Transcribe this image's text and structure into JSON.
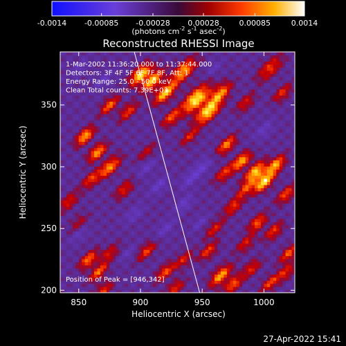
{
  "chart_data": {
    "type": "heatmap",
    "title": "Reconstructed RHESSI Image",
    "xlabel": "Heliocentric X (arcsec)",
    "ylabel": "Heliocentric Y (arcsec)",
    "xlim": [
      835,
      1025
    ],
    "ylim": [
      198,
      393
    ],
    "x_ticks": [
      850,
      900,
      950,
      1000
    ],
    "y_ticks": [
      200,
      250,
      300,
      350
    ],
    "colorbar": {
      "label_main": "(photons cm",
      "label_sup1": "-2",
      "label_mid": " s",
      "label_sup2": "-1",
      "label_mid2": " asec",
      "label_sup3": "-2",
      "label_end": ")",
      "range": [
        -0.0014,
        0.0014
      ],
      "tick_labels": [
        "-0.0014",
        "-0.00085",
        "-0.00028",
        "0.00028",
        "0.00085",
        "0.0014"
      ],
      "tick_values": [
        -0.0014,
        -0.00085,
        -0.00028,
        0.00028,
        0.00085,
        0.0014
      ]
    },
    "annotations": [
      "1-Mar-2002 11:36:20.000 to 11:37:44.000",
      "Detectors: 3F 4F 5F 6F 7F 8F, Att: 1",
      "Energy Range: 25.0 - 50.0 keV",
      "Clean     Total counts: 7.39E+03"
    ],
    "peak_label": "Position of Peak = [946,342]",
    "limb_line": [
      [
        895,
        393
      ],
      [
        948,
        198
      ]
    ],
    "blobs": [
      [
        900,
        375,
        3.5,
        0.95
      ],
      [
        910,
        370,
        3.5,
        0.9
      ],
      [
        920,
        360,
        3.5,
        0.9
      ],
      [
        935,
        378,
        4,
        0.8
      ],
      [
        945,
        355,
        4.5,
        1.0
      ],
      [
        955,
        345,
        4,
        0.95
      ],
      [
        965,
        360,
        3.5,
        0.7
      ],
      [
        875,
        350,
        3,
        0.65
      ],
      [
        890,
        345,
        3,
        0.55
      ],
      [
        925,
        340,
        3,
        0.6
      ],
      [
        940,
        325,
        3,
        0.45
      ],
      [
        985,
        352,
        3,
        0.45
      ],
      [
        1005,
        380,
        4,
        0.55
      ],
      [
        1015,
        360,
        3,
        0.5
      ],
      [
        855,
        325,
        3,
        0.85
      ],
      [
        865,
        312,
        3,
        0.8
      ],
      [
        875,
        300,
        3.5,
        0.75
      ],
      [
        860,
        290,
        3,
        0.55
      ],
      [
        887,
        282,
        3,
        0.5
      ],
      [
        905,
        312,
        3,
        0.35
      ],
      [
        970,
        318,
        3,
        0.75
      ],
      [
        982,
        305,
        3,
        0.85
      ],
      [
        993,
        296,
        3.5,
        0.9
      ],
      [
        1000,
        288,
        3.5,
        0.95
      ],
      [
        1010,
        302,
        3,
        0.8
      ],
      [
        1018,
        278,
        3,
        0.6
      ],
      [
        985,
        282,
        3,
        0.5
      ],
      [
        968,
        295,
        3,
        0.55
      ],
      [
        975,
        268,
        3,
        0.55
      ],
      [
        995,
        255,
        3,
        0.65
      ],
      [
        1008,
        248,
        3,
        0.55
      ],
      [
        1020,
        230,
        3,
        0.6
      ],
      [
        985,
        238,
        3,
        0.45
      ],
      [
        960,
        250,
        3,
        0.45
      ],
      [
        842,
        272,
        3,
        0.5
      ],
      [
        850,
        255,
        3,
        0.3
      ],
      [
        858,
        225,
        3,
        0.7
      ],
      [
        866,
        215,
        3,
        0.65
      ],
      [
        875,
        230,
        3,
        0.45
      ],
      [
        870,
        200,
        3,
        0.5
      ],
      [
        905,
        232,
        3,
        0.55
      ],
      [
        920,
        215,
        3,
        0.6
      ],
      [
        935,
        225,
        3,
        0.45
      ],
      [
        928,
        202,
        3,
        0.5
      ],
      [
        955,
        232,
        3,
        0.55
      ],
      [
        965,
        212,
        3.5,
        0.8
      ],
      [
        975,
        205,
        3,
        0.65
      ],
      [
        990,
        218,
        3,
        0.5
      ],
      [
        1005,
        206,
        3,
        0.55
      ],
      [
        1018,
        215,
        3,
        0.5
      ],
      [
        948,
        255,
        2.5,
        -0.25
      ],
      [
        915,
        285,
        3,
        -0.3
      ],
      [
        895,
        262,
        3,
        -0.25
      ],
      [
        940,
        290,
        3,
        -0.3
      ],
      [
        920,
        250,
        3,
        -0.25
      ],
      [
        890,
        230,
        2.5,
        -0.2
      ],
      [
        950,
        300,
        3,
        -0.3
      ],
      [
        1000,
        330,
        3,
        -0.25
      ],
      [
        870,
        370,
        3,
        -0.25
      ],
      [
        850,
        380,
        3,
        -0.2
      ],
      [
        960,
        380,
        2.5,
        -0.2
      ],
      [
        935,
        270,
        3,
        -0.3
      ],
      [
        905,
        300,
        3,
        -0.25
      ],
      [
        850,
        245,
        3,
        -0.2
      ]
    ]
  }
}
